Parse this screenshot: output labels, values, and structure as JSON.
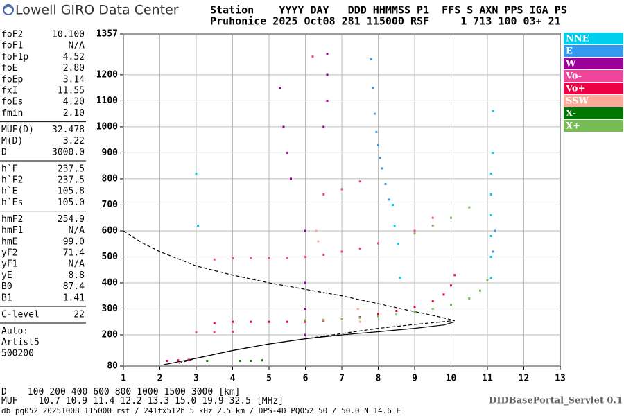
{
  "header": {
    "title": "Lowell GIRO Data Center",
    "station_line_1": "Station    YYYY DAY   DDD HHMMSS P1  FFS S AXN PPS IGA PS",
    "station_line_2": "Pruhonice 2025 Oct08 281 115000 RSF     1 713 100 03+ 21"
  },
  "params": [
    [
      [
        "foF2",
        "10.100"
      ],
      [
        "foF1",
        "N/A"
      ],
      [
        "foF1p",
        "4.52"
      ],
      [
        "foE",
        "2.80"
      ],
      [
        "foEp",
        "3.14"
      ],
      [
        "fxI",
        "11.55"
      ],
      [
        "foEs",
        "4.20"
      ],
      [
        "fmin",
        "2.10"
      ]
    ],
    [
      [
        "MUF(D)",
        "32.478"
      ],
      [
        "M(D)",
        "3.22"
      ],
      [
        "D",
        "3000.0"
      ]
    ],
    [
      [
        "h`F",
        "237.5"
      ],
      [
        "h`F2",
        "237.5"
      ],
      [
        "h`E",
        "105.8"
      ],
      [
        "h`Es",
        "105.0"
      ]
    ],
    [
      [
        "hmF2",
        "254.9"
      ],
      [
        "hmF1",
        "N/A"
      ],
      [
        "hmE",
        "99.0"
      ],
      [
        "yF2",
        "71.4"
      ],
      [
        "yF1",
        "N/A"
      ],
      [
        "yE",
        "8.8"
      ],
      [
        "B0",
        "87.4"
      ],
      [
        "B1",
        "1.41"
      ]
    ],
    [
      [
        "C-level",
        "22"
      ]
    ]
  ],
  "notes": [
    "Auto:",
    "Artist5",
    "500200"
  ],
  "footer": {
    "d_label": "D",
    "d_values": [
      "100",
      "200",
      "400",
      "600",
      "800",
      "1000",
      "1500",
      "3000"
    ],
    "d_unit": "[km]",
    "muf_label": "MUF",
    "muf_values": [
      "10.7",
      "10.9",
      "11.4",
      "12.2",
      "13.3",
      "15.0",
      "19.9",
      "32.5"
    ],
    "muf_unit": "[MHz]",
    "servlet": "DIDBasePortal_Servlet 0.1",
    "file_line": "db pq052 20251008 115000.rsf / 241fx512h 5 kHz 2.5 km / DPS-4D PQ052 50 / 50.0 N 14.6 E"
  },
  "chart_data": {
    "type": "scatter",
    "legend": "right",
    "grid": true,
    "xlim": [
      1,
      13
    ],
    "xticks": [
      1,
      2,
      3,
      4,
      5,
      6,
      7,
      8,
      9,
      10,
      11,
      12,
      13
    ],
    "ylim": [
      80,
      1357
    ],
    "yticks": [
      80,
      200,
      300,
      400,
      500,
      600,
      700,
      800,
      900,
      1000,
      1100,
      1200,
      1357
    ],
    "series": [
      {
        "name": "NNE",
        "color": "#00ccee",
        "x": [
          11.1,
          11.1,
          11.1,
          11.1,
          11.1,
          11.1,
          11.15,
          11.15,
          8.4,
          8.45,
          8.55,
          8.6,
          3.0,
          3.05
        ],
        "values": [
          420,
          500,
          580,
          660,
          740,
          820,
          900,
          1060,
          700,
          620,
          550,
          420,
          820,
          620
        ]
      },
      {
        "name": "E",
        "color": "#3399ee",
        "x": [
          7.9,
          7.95,
          8.0,
          8.05,
          8.1,
          8.2,
          8.3,
          7.8,
          7.85,
          11.2,
          11.15
        ],
        "values": [
          1050,
          980,
          930,
          880,
          840,
          780,
          720,
          1260,
          1150,
          600,
          520
        ]
      },
      {
        "name": "W",
        "color": "#990099",
        "x": [
          6.0,
          6.0,
          6.0,
          6.0,
          6.0,
          6.6,
          6.6,
          6.6,
          6.5,
          5.3,
          5.4,
          5.5,
          5.6
        ],
        "values": [
          600,
          500,
          400,
          300,
          200,
          1280,
          1200,
          1100,
          1000,
          1150,
          1000,
          900,
          800
        ]
      },
      {
        "name": "Vo-",
        "color": "#ee4499",
        "x": [
          3.5,
          4.0,
          4.5,
          5.0,
          5.5,
          6.0,
          6.5,
          7.0,
          7.5,
          8.0,
          6.5,
          7.0,
          7.5,
          6.2,
          9.0,
          9.5,
          3.0,
          3.5,
          4.0
        ],
        "values": [
          490,
          495,
          497,
          495,
          497,
          500,
          508,
          520,
          532,
          552,
          740,
          760,
          790,
          1270,
          600,
          650,
          210,
          210,
          212
        ]
      },
      {
        "name": "Vo+",
        "color": "#ee0044",
        "x": [
          3.5,
          4.0,
          4.5,
          5.0,
          5.5,
          6.0,
          6.5,
          7.0,
          7.5,
          8.0,
          8.5,
          9.0,
          9.5,
          9.8,
          10.0,
          10.1,
          2.2,
          2.5,
          2.8
        ],
        "values": [
          245,
          250,
          250,
          250,
          250,
          250,
          255,
          260,
          268,
          280,
          292,
          308,
          330,
          355,
          390,
          430,
          100,
          102,
          104
        ]
      },
      {
        "name": "SSW",
        "color": "#ffaa99",
        "x": [
          6.3,
          6.35,
          7.45,
          7.5
        ],
        "values": [
          600,
          560,
          300,
          250
        ]
      },
      {
        "name": "X-",
        "color": "#007700",
        "x": [
          4.2,
          4.5,
          4.8,
          3.3
        ],
        "values": [
          100,
          100,
          102,
          100
        ]
      },
      {
        "name": "X+",
        "color": "#77bb55",
        "x": [
          6.0,
          6.5,
          7.0,
          7.5,
          8.0,
          8.5,
          9.0,
          9.5,
          10.0,
          10.5,
          10.8,
          11.0,
          9.0,
          9.5,
          10.0,
          10.5
        ],
        "values": [
          256,
          258,
          262,
          266,
          272,
          278,
          288,
          300,
          315,
          340,
          370,
          410,
          590,
          620,
          650,
          690
        ]
      }
    ],
    "lines": [
      {
        "style": "dashed",
        "x": [
          1.0,
          1.5,
          2.0,
          3.0,
          4.0,
          5.0,
          6.0,
          7.0,
          8.0,
          8.8,
          9.5,
          10.1,
          9.0,
          8.0,
          7.0,
          6.0,
          5.0,
          4.0,
          3.0,
          2.5
        ],
        "values": [
          600,
          555,
          520,
          465,
          430,
          400,
          375,
          350,
          320,
          295,
          275,
          255,
          240,
          225,
          205,
          185,
          165,
          140,
          110,
          90
        ]
      },
      {
        "style": "solid",
        "x": [
          2.1,
          3.0,
          4.0,
          5.0,
          6.0,
          7.0,
          8.0,
          9.0,
          9.8,
          10.1
        ],
        "values": [
          85,
          110,
          140,
          165,
          185,
          200,
          212,
          225,
          238,
          250
        ]
      }
    ]
  }
}
